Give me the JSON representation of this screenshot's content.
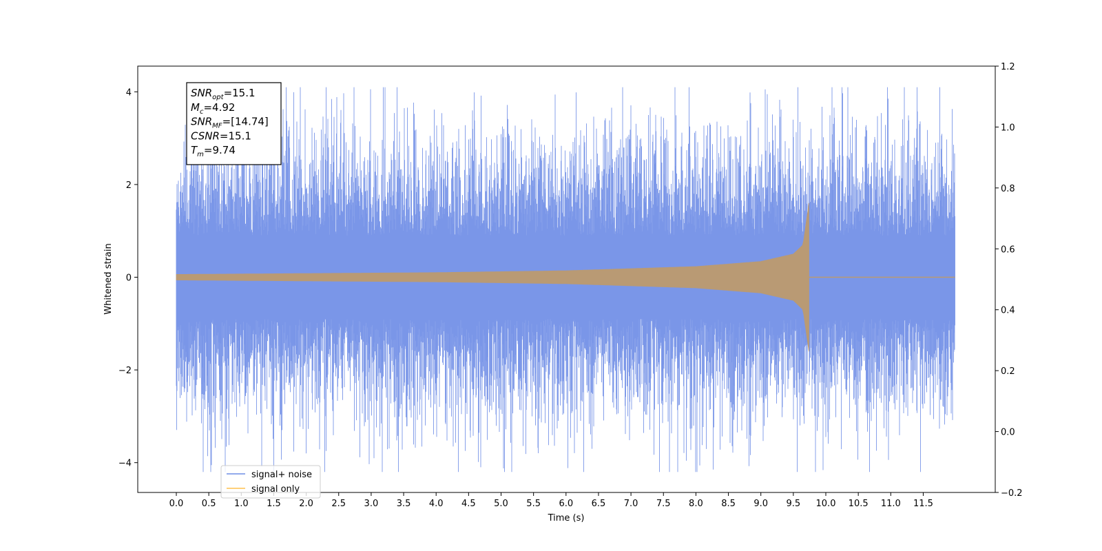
{
  "chart_data": {
    "type": "line",
    "title": "",
    "xlabel": "Time (s)",
    "ylabel": "Whitened strain",
    "xlim": [
      -0.6,
      12.5
    ],
    "ylim": [
      -4.65,
      4.55
    ],
    "y2lim": [
      -0.2,
      1.2
    ],
    "x_ticks": [
      "0.0",
      "0.5",
      "1.0",
      "1.5",
      "2.0",
      "2.5",
      "3.0",
      "3.5",
      "4.0",
      "4.5",
      "5.0",
      "5.5",
      "6.0",
      "6.5",
      "7.0",
      "7.5",
      "8.0",
      "8.5",
      "9.0",
      "9.5",
      "10.0",
      "10.5",
      "11.0",
      "11.5"
    ],
    "y_ticks": [
      "4",
      "2",
      "0",
      "−2",
      "−4"
    ],
    "y2_ticks": [
      "1.2",
      "1.0",
      "0.8",
      "0.6",
      "0.4",
      "0.2",
      "0.0",
      "−0.2"
    ],
    "grid": false,
    "legend_position": "lower left",
    "series": [
      {
        "name": "signal+ noise",
        "color": "#6f8de6",
        "x_range": [
          0.0,
          11.99
        ],
        "typical_abs_amplitude": 1.2,
        "max": 4.1,
        "min": -4.2
      },
      {
        "name": "signal only",
        "color": "#ffc04d",
        "x_range": [
          0.0,
          11.99
        ],
        "merger_time": 9.74,
        "envelope": [
          {
            "x": 0.0,
            "y": 0.06
          },
          {
            "x": 2.0,
            "y": 0.08
          },
          {
            "x": 4.0,
            "y": 0.1
          },
          {
            "x": 6.0,
            "y": 0.14
          },
          {
            "x": 8.0,
            "y": 0.23
          },
          {
            "x": 9.0,
            "y": 0.34
          },
          {
            "x": 9.5,
            "y": 0.5
          },
          {
            "x": 9.65,
            "y": 0.7
          },
          {
            "x": 9.74,
            "y": 1.6
          }
        ]
      }
    ],
    "annotation": [
      {
        "main": "SNR",
        "sub": "opt",
        "value": "=15.1"
      },
      {
        "main": "M",
        "sub": "c",
        "value": "=4.92"
      },
      {
        "main": "SNR",
        "sub": "MF",
        "value": "=[14.74]"
      },
      {
        "main": "CSNR",
        "sub": "",
        "value": "=15.1"
      },
      {
        "main": "T",
        "sub": "m",
        "value": "=9.74"
      }
    ]
  }
}
